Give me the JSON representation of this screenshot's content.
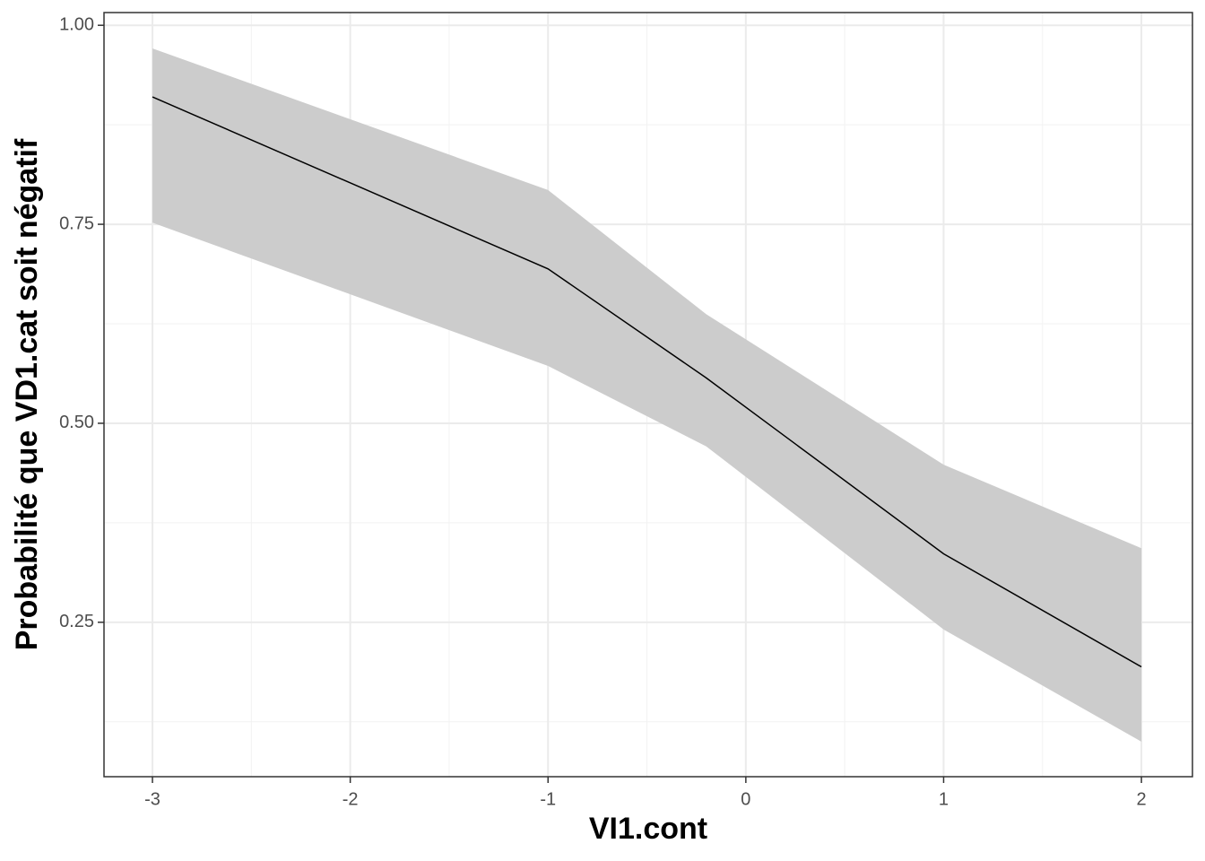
{
  "chart_data": {
    "type": "line",
    "xlabel": "VI1.cont",
    "ylabel": "Probabilité que VD1.cat soit négatif",
    "x": [
      -3,
      -1,
      -0.2,
      1,
      2
    ],
    "values": [
      0.91,
      0.694,
      0.557,
      0.336,
      0.194
    ],
    "lower": [
      0.752,
      0.572,
      0.471,
      0.241,
      0.1
    ],
    "upper": [
      0.971,
      0.793,
      0.637,
      0.448,
      0.343
    ],
    "color": "#000000",
    "band_color": "#cccccc",
    "xlim": [
      -3.245,
      2.258
    ],
    "ylim": [
      0.056,
      1.016
    ],
    "xticks": [
      -3,
      -2,
      -1,
      0,
      1,
      2
    ],
    "yticks": [
      {
        "value": 0.25,
        "label": "0.25"
      },
      {
        "value": 0.5,
        "label": "0.50"
      },
      {
        "value": 0.75,
        "label": "0.75"
      },
      {
        "value": 1,
        "label": "1.00"
      }
    ],
    "x_minor_ticks": [
      -2.5,
      -1.5,
      -0.5,
      0.5,
      1.5
    ],
    "y_minor_ticks": [
      0.125,
      0.375,
      0.625,
      0.875
    ],
    "grid": true
  }
}
